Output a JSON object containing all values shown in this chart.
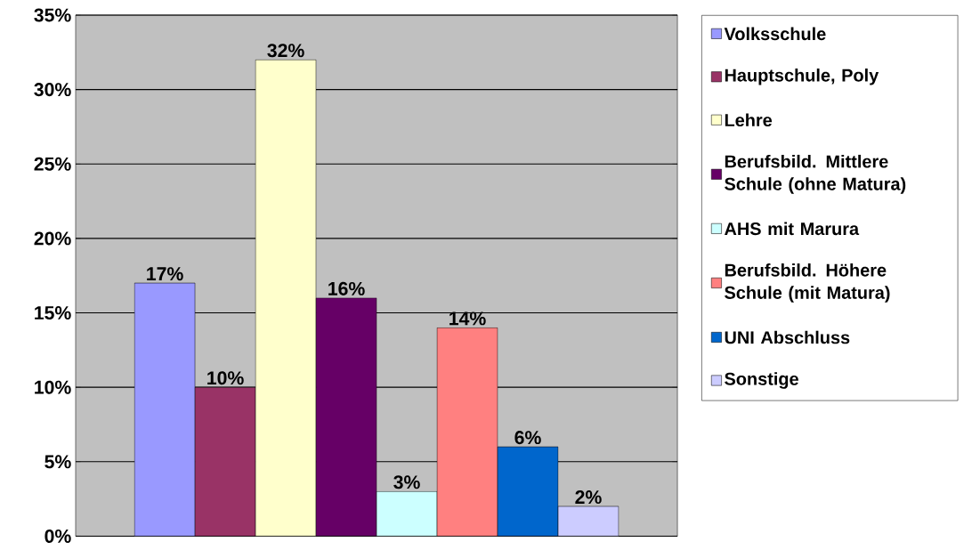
{
  "chart_data": {
    "type": "bar",
    "categories": [
      null
    ],
    "series": [
      {
        "name": "Volksschule",
        "color": "#9999ff",
        "values": [
          17
        ],
        "value_labels": [
          "17%"
        ]
      },
      {
        "name": "Hauptschule, Poly",
        "color": "#993366",
        "values": [
          10
        ],
        "value_labels": [
          "10%"
        ]
      },
      {
        "name": "Lehre",
        "color": "#ffffcc",
        "values": [
          32
        ],
        "value_labels": [
          "32%"
        ]
      },
      {
        "name": "Berufsbild. Mittlere Schule (ohne Matura)",
        "color": "#660066",
        "values": [
          16
        ],
        "value_labels": [
          "16%"
        ]
      },
      {
        "name": "AHS mit Marura",
        "color": "#ccffff",
        "values": [
          3
        ],
        "value_labels": [
          "3%"
        ]
      },
      {
        "name": "Berufsbild. Höhere Schule (mit Matura)",
        "color": "#ff8080",
        "values": [
          14
        ],
        "value_labels": [
          "14%"
        ]
      },
      {
        "name": "UNI Abschluss",
        "color": "#0066cc",
        "values": [
          6
        ],
        "value_labels": [
          "6%"
        ]
      },
      {
        "name": "Sonstige",
        "color": "#ccccff",
        "values": [
          2
        ],
        "value_labels": [
          "2%"
        ]
      }
    ],
    "ylim": [
      0,
      35
    ],
    "yticks": [
      {
        "value": 0,
        "label": "0%"
      },
      {
        "value": 5,
        "label": "5%"
      },
      {
        "value": 10,
        "label": "10%"
      },
      {
        "value": 15,
        "label": "15%"
      },
      {
        "value": 20,
        "label": "20%"
      },
      {
        "value": 25,
        "label": "25%"
      },
      {
        "value": 30,
        "label": "30%"
      },
      {
        "value": 35,
        "label": "35%"
      }
    ],
    "grid": "y",
    "legend": "right"
  }
}
